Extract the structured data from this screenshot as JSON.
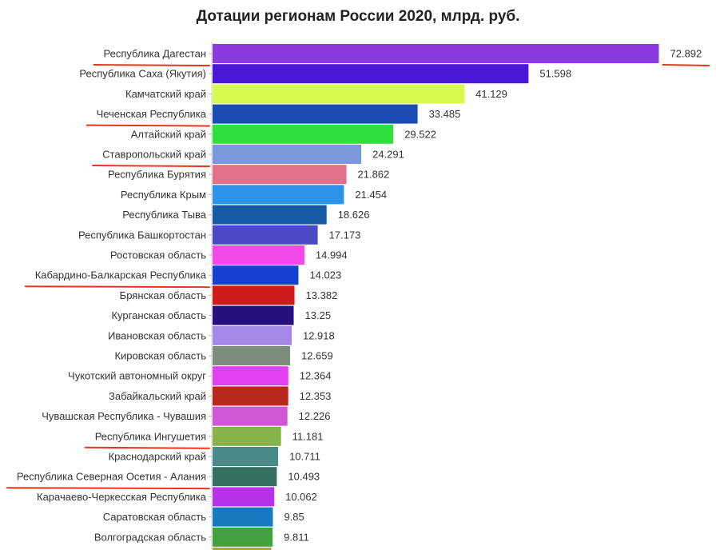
{
  "chart_data": {
    "type": "bar",
    "orientation": "horizontal",
    "title": "Дотации регионам России 2020, млрд. руб.",
    "categories": [
      "Республика Дагестан",
      "Республика Саха (Якутия)",
      "Камчатский край",
      "Чеченская Республика",
      "Алтайский край",
      "Ставропольский край",
      "Республика Бурятия",
      "Республика Крым",
      "Республика Тыва",
      "Республика Башкортостан",
      "Ростовская область",
      "Кабардино-Балкарская Республика",
      "Брянская область",
      "Курганская область",
      "Ивановская область",
      "Кировская область",
      "Чукотский автономный округ",
      "Забайкальский край",
      "Чувашская Республика - Чувашия",
      "Республика Ингушетия",
      "Краснодарский край",
      "Республика Северная Осетия - Алания",
      "Карачаево-Черкесская Республика",
      "Саратовская область",
      "Волгоградская область"
    ],
    "values": [
      72.892,
      51.598,
      41.129,
      33.485,
      29.522,
      24.291,
      21.862,
      21.454,
      18.626,
      17.173,
      14.994,
      14.023,
      13.382,
      13.25,
      12.918,
      12.659,
      12.364,
      12.353,
      12.226,
      11.181,
      10.711,
      10.493,
      10.062,
      9.85,
      9.811
    ],
    "value_labels": [
      "72.892",
      "51.598",
      "41.129",
      "33.485",
      "29.522",
      "24.291",
      "21.862",
      "21.454",
      "18.626",
      "17.173",
      "14.994",
      "14.023",
      "13.382",
      "13.25",
      "12.918",
      "12.659",
      "12.364",
      "12.353",
      "12.226",
      "11.181",
      "10.711",
      "10.493",
      "10.062",
      "9.85",
      "9.811"
    ],
    "colors": [
      "#8b3ae0",
      "#4a18d8",
      "#d6fa52",
      "#1c4bb3",
      "#30de3c",
      "#7b98dd",
      "#e17088",
      "#2b93e8",
      "#165aa3",
      "#4a48c4",
      "#f248ea",
      "#1840d0",
      "#cf1b1b",
      "#261080",
      "#a487e6",
      "#7d8c7d",
      "#e040f0",
      "#b8281e",
      "#d058d6",
      "#88b24a",
      "#4a8a88",
      "#357060",
      "#b631e8",
      "#1879c0",
      "#44a040"
    ],
    "highlighted_underline": [
      "Республика Дагестан",
      "Чеченская Республика",
      "Ставропольский край",
      "Кабардино-Балкарская Республика",
      "Республика Ингушетия",
      "Республика Северная Осетия - Алания"
    ],
    "value_underlined": "72.892",
    "underline_color": "#e8361e",
    "xlim": [
      0,
      74
    ],
    "grid": false,
    "legend": "none"
  }
}
